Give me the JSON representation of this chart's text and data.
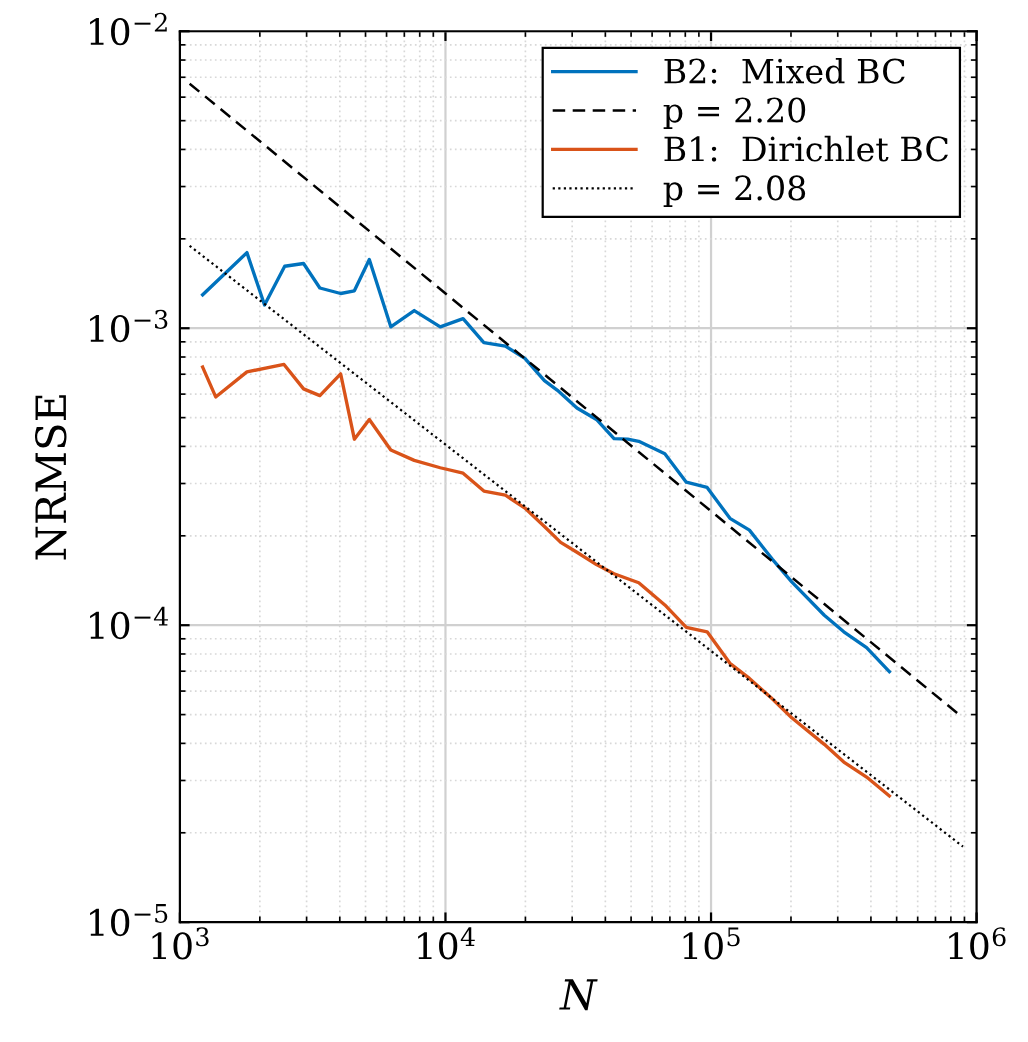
{
  "chart_data": {
    "type": "line",
    "xlabel": "N",
    "ylabel": "NRMSE",
    "log": "xy",
    "grid": true,
    "legend": "top right",
    "xlim": [
      1000,
      1000000
    ],
    "ylim": [
      1e-05,
      0.01
    ],
    "xticks": [
      {
        "value": 1000,
        "label": "10$^{3}$"
      },
      {
        "value": 10000,
        "label": "10$^{4}$"
      },
      {
        "value": 100000,
        "label": "10$^{5}$"
      },
      {
        "value": 1000000,
        "label": "10$^{6}$"
      }
    ],
    "yticks": [
      {
        "value": 1e-05,
        "label": "10$^{−5}$"
      },
      {
        "value": 0.0001,
        "label": "10$^{−4}$"
      },
      {
        "value": 0.001,
        "label": "10$^{−3}$"
      },
      {
        "value": 0.01,
        "label": "10$^{−2}$"
      }
    ],
    "series": [
      {
        "name": "B2:  Mixed BC",
        "color": "#0072bd",
        "line_style": "solid",
        "x": [
          1218,
          1788,
          2083,
          2481,
          2922,
          3365,
          4030,
          4539,
          5167,
          6225,
          7627,
          9559,
          11650,
          13950,
          16810,
          19910,
          23580,
          26410,
          31260,
          37030,
          43130,
          48570,
          53440,
          66990,
          80700,
          96660,
          117800,
          139500,
          170000,
          201300,
          267000,
          316200,
          385300,
          469400
        ],
        "values": [
          0.001296,
          0.001797,
          0.001197,
          0.001617,
          0.001652,
          0.001366,
          0.001309,
          0.001337,
          0.001705,
          0.001011,
          0.001147,
          0.001011,
          0.001077,
          0.000895,
          0.000871,
          0.000792,
          0.000666,
          0.000618,
          0.000539,
          0.000493,
          0.000425,
          0.000423,
          0.000416,
          0.000378,
          0.000303,
          0.000291,
          0.000229,
          0.000209,
          0.000167,
          0.00014,
          0.000108,
          9.5e-05,
          8.4e-05,
          6.98e-05
        ]
      },
      {
        "name": "p = 2.20",
        "color": "#000000",
        "line_style": "dashed",
        "x": [
          1088,
          888500
        ],
        "values": [
          0.00666,
          4.88e-05
        ]
      },
      {
        "name": "B1:  Dirichlet BC",
        "color": "#d95319",
        "line_style": "solid",
        "x": [
          1218,
          1364,
          1788,
          2466,
          2922,
          3365,
          4030,
          4539,
          5167,
          6225,
          7627,
          9559,
          11650,
          13950,
          16810,
          19910,
          23580,
          27150,
          31260,
          37030,
          43130,
          53440,
          66990,
          80700,
          96660,
          117800,
          139500,
          170000,
          201300,
          267000,
          316200,
          385300,
          469400
        ],
        "values": [
          0.00074,
          0.000587,
          0.000713,
          0.000755,
          0.000625,
          0.000593,
          0.000702,
          0.000423,
          0.000493,
          0.000389,
          0.000359,
          0.000339,
          0.000325,
          0.000283,
          0.000274,
          0.000248,
          0.000215,
          0.00019,
          0.000176,
          0.00016,
          0.000149,
          0.000139,
          0.000117,
          9.84e-05,
          9.5e-05,
          7.44e-05,
          6.62e-05,
          5.65e-05,
          4.88e-05,
          3.97e-05,
          3.46e-05,
          3.08e-05,
          2.66e-05
        ]
      },
      {
        "name": "p = 2.08",
        "color": "#000000",
        "line_style": "dotted",
        "x": [
          1088,
          888500
        ],
        "values": [
          0.001895,
          1.796e-05
        ]
      }
    ]
  }
}
